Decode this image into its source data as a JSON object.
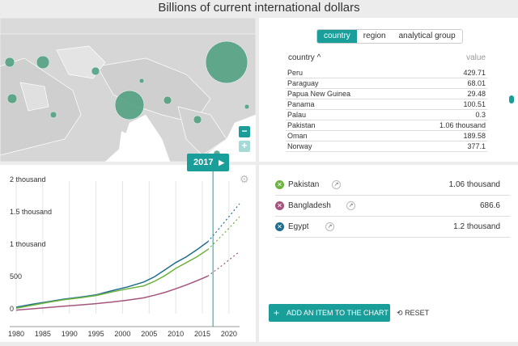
{
  "title": "Billions of current international dollars",
  "tabs": [
    {
      "label": "country",
      "active": true
    },
    {
      "label": "region",
      "active": false
    },
    {
      "label": "analytical group",
      "active": false
    }
  ],
  "table": {
    "col_country": "country ^",
    "col_value": "value",
    "rows": [
      {
        "country": "Peru",
        "value": "429.71"
      },
      {
        "country": "Paraguay",
        "value": "68.01"
      },
      {
        "country": "Papua New Guinea",
        "value": "29.48"
      },
      {
        "country": "Panama",
        "value": "100.51"
      },
      {
        "country": "Palau",
        "value": "0.3"
      },
      {
        "country": "Pakistan",
        "value": "1.06 thousand"
      },
      {
        "country": "Oman",
        "value": "189.58"
      },
      {
        "country": "Norway",
        "value": "377.1"
      }
    ]
  },
  "zoom": {
    "in": "+",
    "out": "−"
  },
  "year_badge": "2017",
  "legend": [
    {
      "name": "Pakistan",
      "value": "1.06 thousand",
      "color": "#6db33f"
    },
    {
      "name": "Bangladesh",
      "value": "686.6",
      "color": "#a5557d"
    },
    {
      "name": "Egypt",
      "value": "1.2 thousand",
      "color": "#1f6d8c"
    }
  ],
  "add_button": "ADD AN ITEM TO THE CHART",
  "reset_label": "RESET",
  "icons": {
    "gear": "gear-icon",
    "play": "play-icon",
    "reset": "reset-icon"
  },
  "map_bubbles": [
    {
      "size": 26
    },
    {
      "size": 18
    },
    {
      "size": 8
    },
    {
      "size": 6
    },
    {
      "size": 5
    },
    {
      "size": 5
    },
    {
      "size": 4
    },
    {
      "size": 6
    },
    {
      "size": 5
    },
    {
      "size": 4
    },
    {
      "size": 3
    },
    {
      "size": 3
    }
  ],
  "chart_data": {
    "type": "line",
    "title": "",
    "xlabel": "",
    "ylabel": "",
    "xlim": [
      1980,
      2022
    ],
    "ylim": [
      0,
      2000
    ],
    "x_ticks": [
      1980,
      1985,
      1990,
      1995,
      2000,
      2005,
      2010,
      2015,
      2020
    ],
    "y_ticks": [
      {
        "v": 0,
        "label": "0"
      },
      {
        "v": 500,
        "label": "500"
      },
      {
        "v": 1000,
        "label": "1 thousand"
      },
      {
        "v": 1500,
        "label": "1.5 thousand"
      },
      {
        "v": 2000,
        "label": "2 thousand"
      }
    ],
    "current_year": 2017,
    "series": [
      {
        "name": "Egypt",
        "color": "#1f6d8c",
        "x": [
          1980,
          1983,
          1986,
          1989,
          1992,
          1995,
          1998,
          2001,
          2004,
          2006,
          2008,
          2010,
          2012,
          2014,
          2016
        ],
        "values": [
          100,
          145,
          185,
          225,
          255,
          290,
          355,
          415,
          490,
          570,
          680,
          790,
          880,
          990,
          1110
        ],
        "projection": {
          "x": [
            2016,
            2018,
            2020,
            2022
          ],
          "values": [
            1110,
            1300,
            1500,
            1700
          ]
        }
      },
      {
        "name": "Pakistan",
        "color": "#6db33f",
        "x": [
          1980,
          1983,
          1986,
          1989,
          1992,
          1995,
          1998,
          2001,
          2004,
          2006,
          2008,
          2010,
          2012,
          2014,
          2016
        ],
        "values": [
          85,
          130,
          175,
          215,
          245,
          280,
          335,
          385,
          430,
          500,
          590,
          700,
          790,
          880,
          990
        ],
        "projection": {
          "x": [
            2016,
            2018,
            2020,
            2022
          ],
          "values": [
            990,
            1150,
            1320,
            1500
          ]
        }
      },
      {
        "name": "Bangladesh",
        "color": "#a5557d",
        "x": [
          1980,
          1983,
          1986,
          1989,
          1992,
          1995,
          1998,
          2001,
          2004,
          2006,
          2008,
          2010,
          2012,
          2014,
          2016
        ],
        "values": [
          55,
          75,
          95,
          115,
          135,
          155,
          180,
          210,
          245,
          285,
          330,
          385,
          445,
          510,
          580
        ],
        "projection": {
          "x": [
            2016,
            2018,
            2020,
            2022
          ],
          "values": [
            580,
            700,
            830,
            960
          ]
        }
      }
    ]
  }
}
